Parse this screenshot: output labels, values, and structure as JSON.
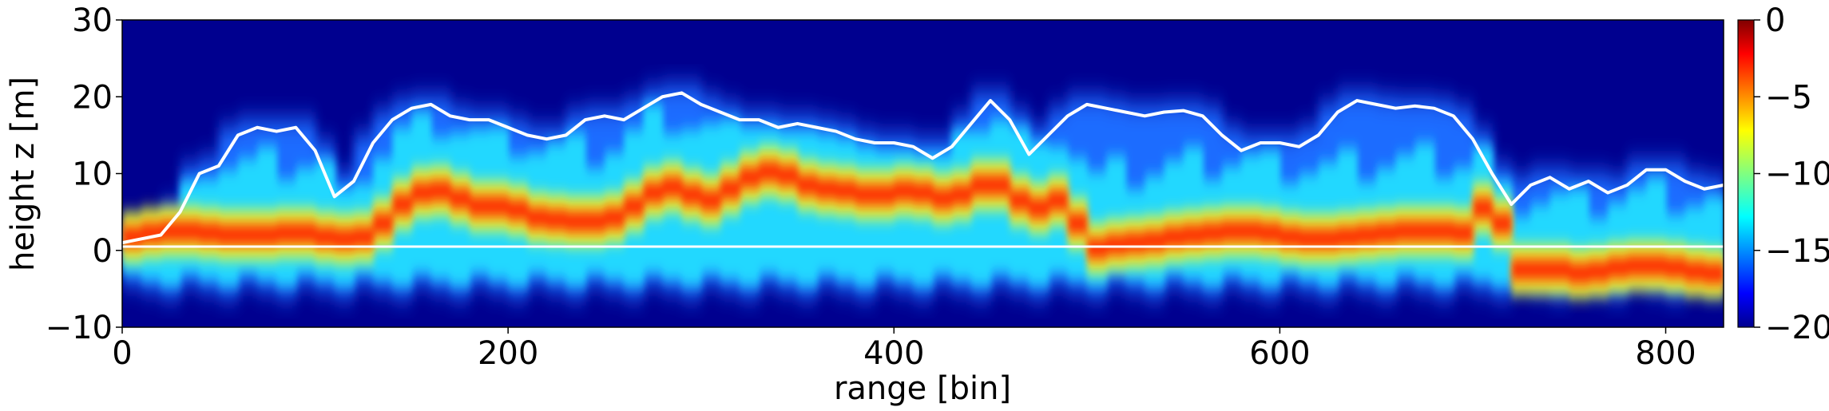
{
  "chart_data": {
    "type": "heatmap",
    "title": "",
    "xlabel": "range [bin]",
    "ylabel": "height z [m]",
    "xlim": [
      0,
      830
    ],
    "ylim": [
      -10,
      30
    ],
    "x_ticks": [
      0,
      200,
      400,
      600,
      800
    ],
    "y_ticks": [
      -10,
      0,
      10,
      20,
      30
    ],
    "colorbar": {
      "colormap": "jet",
      "range": [
        -20,
        0
      ],
      "ticks": [
        0,
        -5,
        -10,
        -15,
        -20
      ]
    },
    "background_color": "#00008f",
    "ground_line": {
      "z": 0.5,
      "color": "#ffffff"
    },
    "canopy_height_line": {
      "color": "#ffffff",
      "x": [
        0,
        10,
        20,
        30,
        40,
        50,
        60,
        70,
        80,
        90,
        100,
        110,
        120,
        130,
        140,
        150,
        160,
        170,
        180,
        190,
        200,
        210,
        220,
        230,
        240,
        250,
        260,
        270,
        280,
        290,
        300,
        310,
        320,
        330,
        340,
        350,
        360,
        370,
        380,
        390,
        400,
        410,
        420,
        430,
        440,
        450,
        460,
        470,
        480,
        490,
        500,
        510,
        520,
        530,
        540,
        550,
        560,
        570,
        580,
        590,
        600,
        610,
        620,
        630,
        640,
        650,
        660,
        670,
        680,
        690,
        700,
        710,
        720,
        730,
        740,
        750,
        760,
        770,
        780,
        790,
        800,
        810,
        820,
        830
      ],
      "z": [
        1,
        1.5,
        2,
        5,
        10,
        11,
        15,
        16,
        15.5,
        16,
        13,
        7,
        9,
        14,
        17,
        18.5,
        19,
        17.5,
        17,
        17,
        16,
        15,
        14.5,
        15,
        17,
        17.5,
        17,
        18.5,
        20,
        20.5,
        19,
        18,
        17,
        17,
        16,
        16.5,
        16,
        15.5,
        14.5,
        14,
        14,
        13.5,
        12,
        13.5,
        16.5,
        19.5,
        17,
        12.5,
        15,
        17.5,
        19,
        18.5,
        18,
        17.5,
        18,
        18.2,
        17.5,
        15,
        13,
        14,
        14,
        13.5,
        15,
        18,
        19.5,
        19,
        18.5,
        18.8,
        18.5,
        17.5,
        14.5,
        10,
        6,
        8.5,
        9.5,
        8,
        9,
        7.5,
        8.5,
        10.5,
        10.5,
        9,
        8,
        8.5
      ]
    },
    "signal_ridge": {
      "x": [
        0,
        10,
        20,
        30,
        40,
        50,
        60,
        70,
        80,
        90,
        100,
        110,
        120,
        130,
        140,
        150,
        160,
        170,
        180,
        190,
        200,
        210,
        220,
        230,
        240,
        250,
        260,
        270,
        280,
        290,
        300,
        310,
        320,
        330,
        340,
        350,
        360,
        370,
        380,
        390,
        400,
        410,
        420,
        430,
        440,
        450,
        460,
        470,
        480,
        490,
        500,
        510,
        520,
        530,
        540,
        550,
        560,
        570,
        580,
        590,
        600,
        610,
        620,
        630,
        640,
        650,
        660,
        670,
        680,
        690,
        700,
        710,
        720,
        730,
        740,
        750,
        760,
        770,
        780,
        790,
        800,
        810,
        820,
        830
      ],
      "z": [
        1.5,
        2,
        2.5,
        2.5,
        2.5,
        2,
        2,
        2,
        2,
        2.5,
        2,
        1.5,
        1.5,
        2,
        5,
        7,
        8,
        7.5,
        6,
        5.5,
        6,
        4.5,
        4,
        4,
        3.5,
        4,
        4.5,
        7,
        8,
        8.5,
        6,
        7,
        9,
        10,
        10.5,
        9,
        8,
        8,
        7.5,
        7,
        7.5,
        8,
        7,
        6.5,
        8,
        9,
        8,
        5,
        6,
        7,
        0,
        0.5,
        1,
        1,
        1.5,
        2,
        2,
        2.5,
        2.5,
        2.5,
        2,
        1.5,
        1.5,
        1.5,
        2,
        2,
        2.5,
        2.5,
        2.5,
        2.5,
        2,
        9,
        -2,
        -3,
        -2,
        -3,
        -3,
        -2.5,
        -2,
        -2,
        -2,
        -2.5,
        -3,
        -3
      ]
    }
  }
}
